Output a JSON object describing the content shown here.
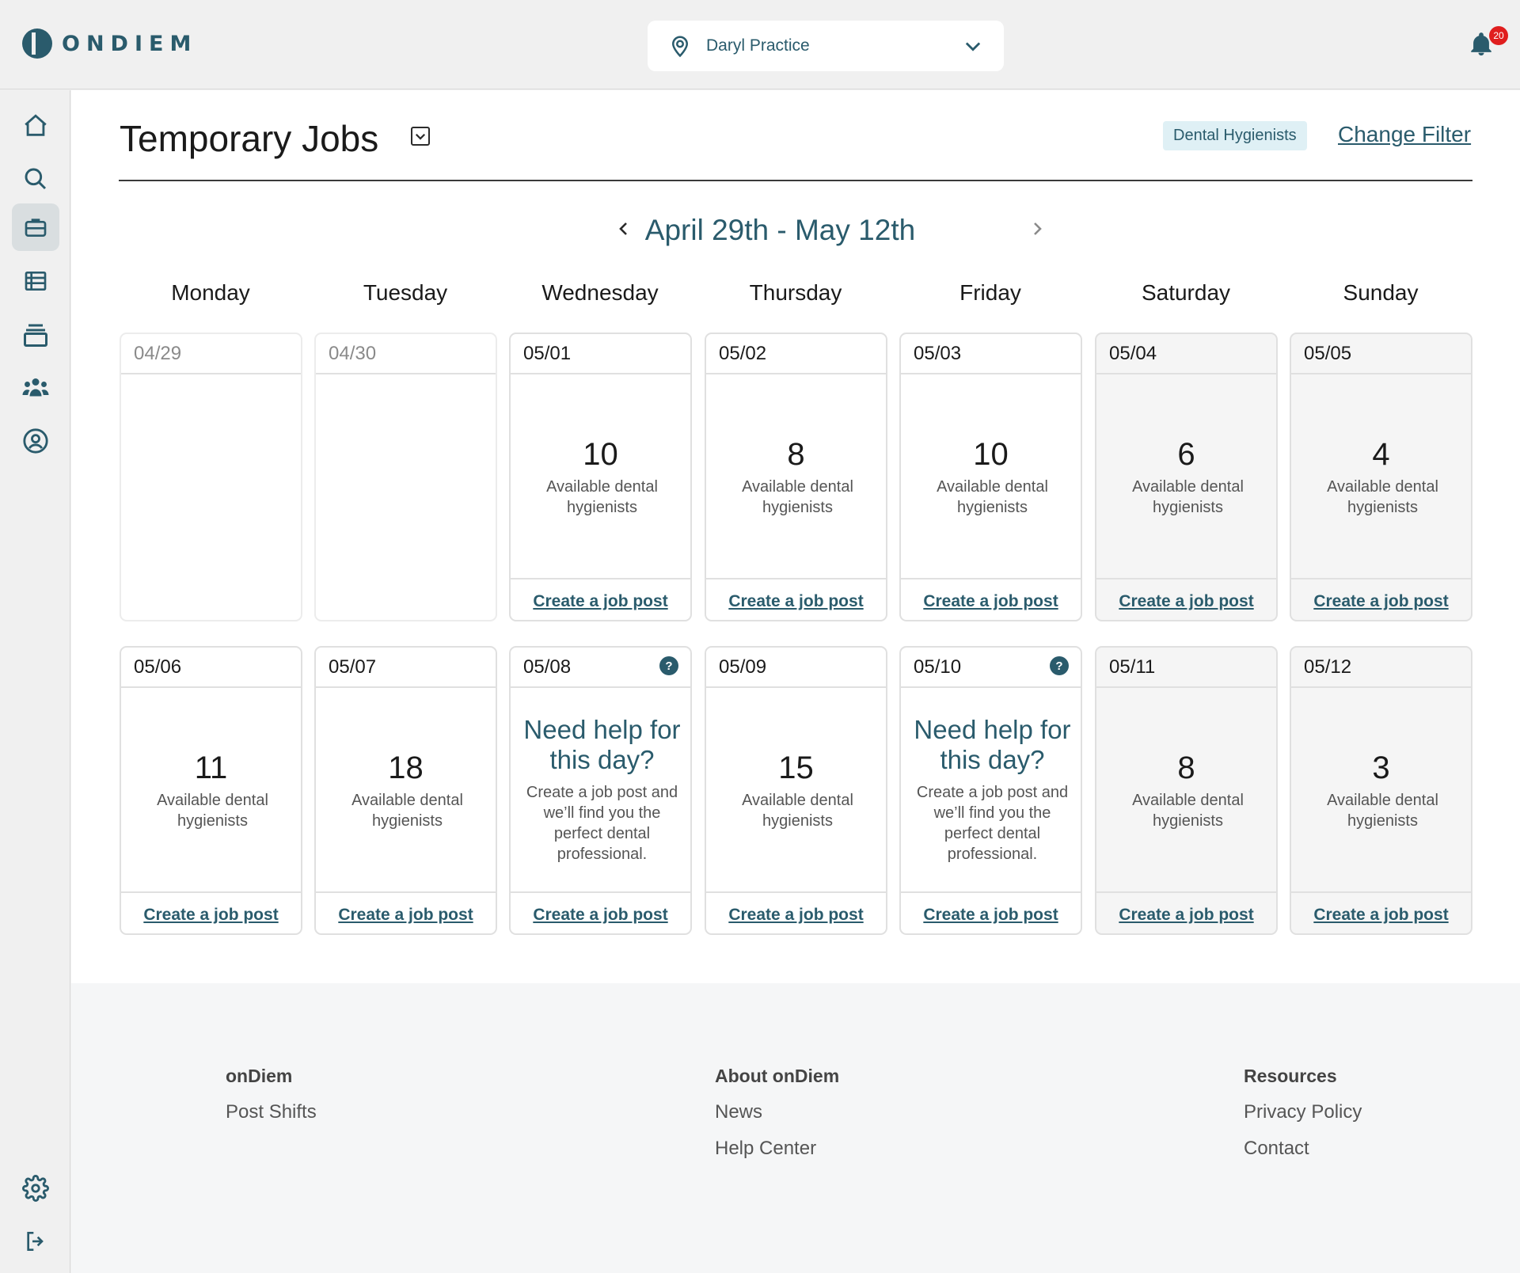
{
  "app": {
    "brand": "ONDIEM",
    "notification_count": "20"
  },
  "location": {
    "name": "Daryl Practice"
  },
  "page": {
    "title": "Temporary Jobs",
    "filter_badge": "Dental Hygienists",
    "change_filter": "Change Filter",
    "date_range": "April 29th - May 12th"
  },
  "weekdays": [
    "Monday",
    "Tuesday",
    "Wednesday",
    "Thursday",
    "Friday",
    "Saturday",
    "Sunday"
  ],
  "weeks": [
    [
      {
        "date": "04/29",
        "state": "past"
      },
      {
        "date": "04/30",
        "state": "past"
      },
      {
        "date": "05/01",
        "count": "10",
        "available": "Available dental hygienists",
        "link": "Create a job post"
      },
      {
        "date": "05/02",
        "count": "8",
        "available": "Available dental hygienists",
        "link": "Create a job post"
      },
      {
        "date": "05/03",
        "count": "10",
        "available": "Available dental hygienists",
        "link": "Create a job post"
      },
      {
        "date": "05/04",
        "count": "6",
        "available": "Available dental hygienists",
        "link": "Create a job post",
        "weekend": true
      },
      {
        "date": "05/05",
        "count": "4",
        "available": "Available dental hygienists",
        "link": "Create a job post",
        "weekend": true
      }
    ],
    [
      {
        "date": "05/06",
        "count": "11",
        "available": "Available dental hygienists",
        "link": "Create a job post"
      },
      {
        "date": "05/07",
        "count": "18",
        "available": "Available dental hygienists",
        "link": "Create a job post"
      },
      {
        "date": "05/08",
        "help": true,
        "help_title": "Need help for this day?",
        "help_text": "Create a job post and we’ll find you the perfect dental professional.",
        "link": "Create a job post"
      },
      {
        "date": "05/09",
        "count": "15",
        "available": "Available dental hygienists",
        "link": "Create a job post"
      },
      {
        "date": "05/10",
        "help": true,
        "help_title": "Need help for this day?",
        "help_text": "Create a job post and we’ll find you the perfect dental professional.",
        "link": "Create a job post"
      },
      {
        "date": "05/11",
        "count": "8",
        "available": "Available dental hygienists",
        "link": "Create a job post",
        "weekend": true
      },
      {
        "date": "05/12",
        "count": "3",
        "available": "Available dental hygienists",
        "link": "Create a job post",
        "weekend": true
      }
    ]
  ],
  "footer": {
    "col1": {
      "heading": "onDiem",
      "links": [
        "Post Shifts"
      ]
    },
    "col2": {
      "heading": "About onDiem",
      "links": [
        "News",
        "Help Center"
      ]
    },
    "col3": {
      "heading": "Resources",
      "links": [
        "Privacy Policy",
        "Contact"
      ]
    }
  },
  "colors": {
    "brand": "#2a5b6c",
    "badge_bg": "#dff0f5",
    "notification": "#e01e1e"
  }
}
